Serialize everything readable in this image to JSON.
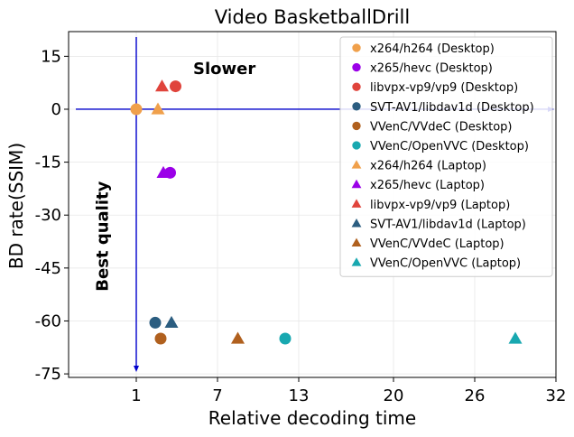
{
  "chart_data": {
    "type": "scatter",
    "title": "Video BasketballDrill",
    "xlabel": "Relative decoding time",
    "ylabel": "BD rate(SSIM)",
    "xlim": [
      -4,
      32
    ],
    "ylim": [
      -76,
      22
    ],
    "xticks": [
      1,
      7,
      13,
      20,
      26,
      32
    ],
    "yticks": [
      15,
      0,
      -15,
      -30,
      -45,
      -60,
      -75
    ],
    "grid": true,
    "legend_position": "top-right",
    "annotations": [
      {
        "text": "Slower",
        "x": 5.2,
        "y": 10
      },
      {
        "text": "Best quality",
        "x": -1.5,
        "y": -36
      }
    ],
    "reference_lines": {
      "x": 1,
      "y": 0,
      "color": "#0000cc"
    },
    "series": [
      {
        "name": "x264/h264 (Desktop)",
        "marker": "circle",
        "color": "#f0a04b",
        "points": [
          [
            1.0,
            0.0
          ]
        ]
      },
      {
        "name": "x265/hevc (Desktop)",
        "marker": "circle",
        "color": "#9b00e8",
        "points": [
          [
            3.5,
            -18.0
          ]
        ]
      },
      {
        "name": "libvpx-vp9/vp9 (Desktop)",
        "marker": "circle",
        "color": "#e0443c",
        "points": [
          [
            3.9,
            6.5
          ]
        ]
      },
      {
        "name": "SVT-AV1/libdav1d (Desktop)",
        "marker": "circle",
        "color": "#2b5d80",
        "points": [
          [
            2.4,
            -60.5
          ]
        ]
      },
      {
        "name": "VVenC/VVdeC (Desktop)",
        "marker": "circle",
        "color": "#b0601e",
        "points": [
          [
            2.8,
            -65.0
          ]
        ]
      },
      {
        "name": "VVenC/OpenVVC (Desktop)",
        "marker": "circle",
        "color": "#18a8b0",
        "points": [
          [
            12.0,
            -65.0
          ]
        ]
      },
      {
        "name": "x264/h264 (Laptop)",
        "marker": "triangle",
        "color": "#f0a04b",
        "points": [
          [
            2.6,
            0.0
          ]
        ]
      },
      {
        "name": "x265/hevc (Laptop)",
        "marker": "triangle",
        "color": "#9b00e8",
        "points": [
          [
            3.0,
            -18.0
          ]
        ]
      },
      {
        "name": "libvpx-vp9/vp9 (Laptop)",
        "marker": "triangle",
        "color": "#e0443c",
        "points": [
          [
            2.9,
            6.5
          ]
        ]
      },
      {
        "name": "SVT-AV1/libdav1d (Laptop)",
        "marker": "triangle",
        "color": "#2b5d80",
        "points": [
          [
            3.6,
            -60.5
          ]
        ]
      },
      {
        "name": "VVenC/VVdeC (Laptop)",
        "marker": "triangle",
        "color": "#b0601e",
        "points": [
          [
            8.5,
            -65.0
          ]
        ]
      },
      {
        "name": "VVenC/OpenVVC (Laptop)",
        "marker": "triangle",
        "color": "#18a8b0",
        "points": [
          [
            29.0,
            -65.0
          ]
        ]
      }
    ]
  }
}
